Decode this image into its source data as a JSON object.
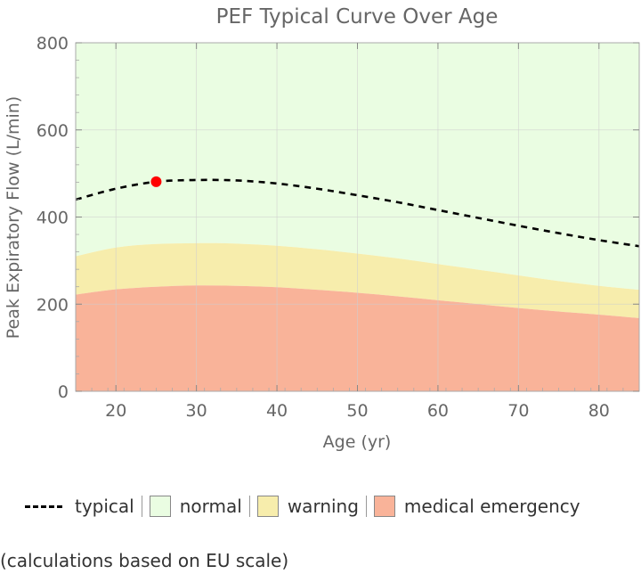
{
  "chart_data": {
    "type": "area",
    "title": "PEF Typical Curve Over Age",
    "xlabel": "Age (yr)",
    "ylabel": "Peak Expiratory Flow  (L/min)",
    "xlim": [
      15,
      85
    ],
    "ylim": [
      0,
      800
    ],
    "xticks": [
      20,
      30,
      40,
      50,
      60,
      70,
      80
    ],
    "yticks": [
      0,
      200,
      400,
      600,
      800
    ],
    "grid": true,
    "x": [
      15,
      20,
      25,
      30,
      35,
      40,
      45,
      50,
      55,
      60,
      65,
      70,
      75,
      80,
      85
    ],
    "series": [
      {
        "name": "typical",
        "style": "dashed-line",
        "color": "#000000",
        "values": [
          440,
          465,
          481,
          485,
          484,
          477,
          465,
          450,
          434,
          416,
          398,
          380,
          363,
          347,
          333
        ]
      },
      {
        "name": "normal",
        "style": "band",
        "color": "#eafde2",
        "lower": [
          310,
          330,
          338,
          340,
          339,
          334,
          326,
          316,
          305,
          292,
          279,
          266,
          253,
          242,
          233
        ],
        "upper": [
          800,
          800,
          800,
          800,
          800,
          800,
          800,
          800,
          800,
          800,
          800,
          800,
          800,
          800,
          800
        ]
      },
      {
        "name": "warning",
        "style": "band",
        "color": "#f7edac",
        "lower": [
          222,
          234,
          240,
          243,
          242,
          239,
          233,
          226,
          218,
          209,
          200,
          191,
          183,
          176,
          168
        ],
        "upper": [
          310,
          330,
          338,
          340,
          339,
          334,
          326,
          316,
          305,
          292,
          279,
          266,
          253,
          242,
          233
        ]
      },
      {
        "name": "medical emergency",
        "style": "band",
        "color": "#f9b399",
        "lower": [
          0,
          0,
          0,
          0,
          0,
          0,
          0,
          0,
          0,
          0,
          0,
          0,
          0,
          0,
          0
        ],
        "upper": [
          222,
          234,
          240,
          243,
          242,
          239,
          233,
          226,
          218,
          209,
          200,
          191,
          183,
          176,
          168
        ]
      }
    ],
    "marker": {
      "x": 25,
      "y": 481,
      "color": "#ff0000"
    },
    "legend_position": "bottom"
  },
  "legend": {
    "typical": "typical",
    "normal": "normal",
    "warning": "warning",
    "emergency": "medical emergency"
  },
  "footnote": "(calculations based on EU scale)"
}
